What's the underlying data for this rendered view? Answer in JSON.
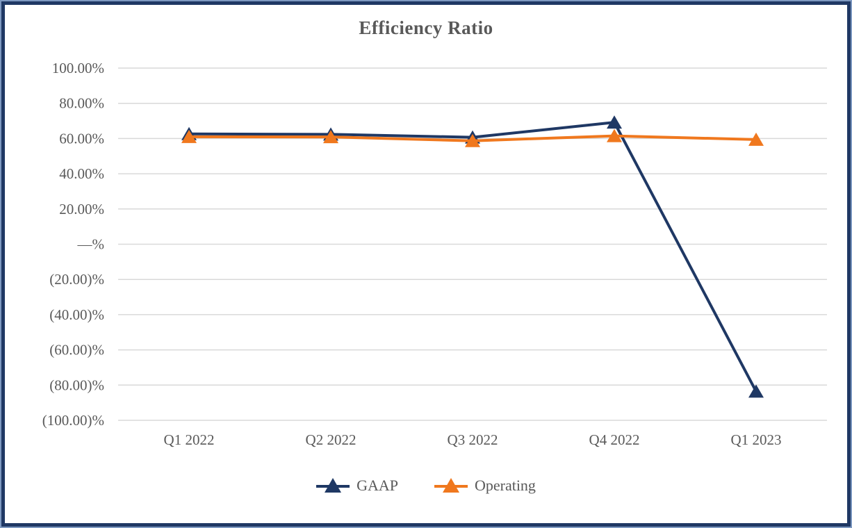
{
  "frame": {
    "outer_border_color": "#7E99C1",
    "inner_border_color": "#1F3864",
    "background": "#ffffff"
  },
  "chart_data": {
    "type": "line",
    "title": "Efficiency Ratio",
    "categories": [
      "Q1 2022",
      "Q2 2022",
      "Q3 2022",
      "Q4 2022",
      "Q1 2023"
    ],
    "series": [
      {
        "name": "GAAP",
        "color": "#1F3864",
        "marker": "triangle",
        "values": [
          62.6,
          62.4,
          60.7,
          69.2,
          -83.6
        ]
      },
      {
        "name": "Operating",
        "color": "#F0781E",
        "marker": "triangle",
        "values": [
          61.0,
          60.9,
          58.7,
          61.5,
          59.4
        ]
      }
    ],
    "y_axis": {
      "min": -100,
      "max": 100,
      "tick_interval": 20,
      "tick_labels": [
        "100.00%",
        "80.00%",
        "60.00%",
        "40.00%",
        "20.00%",
        "—%",
        "(20.00)%",
        "(40.00)%",
        "(60.00)%",
        "(80.00)%",
        "(100.00)%"
      ]
    },
    "grid": true,
    "legend_position": "bottom",
    "text_color": "#595959",
    "gridline_color": "#D9D9D9"
  }
}
